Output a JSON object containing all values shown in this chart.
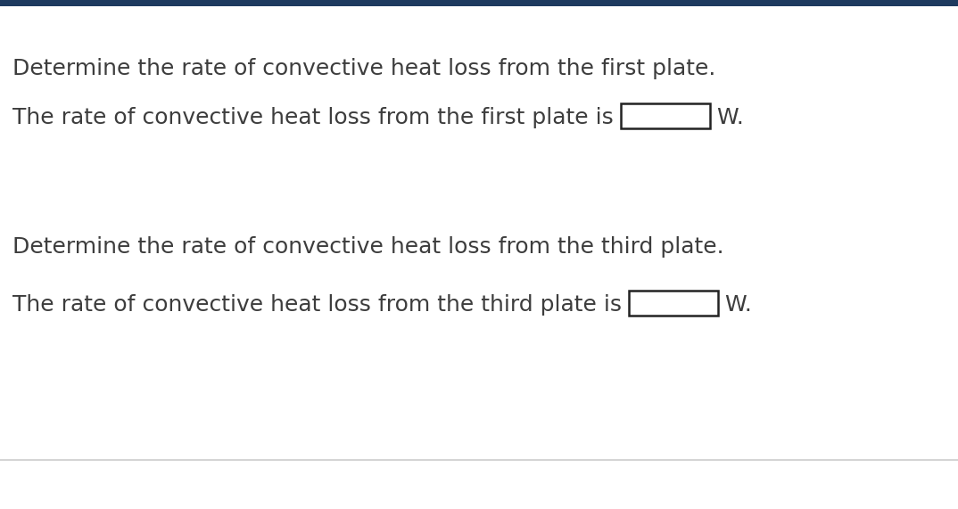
{
  "bg_color": "#ffffff",
  "top_border_color": "#1e3a5f",
  "bottom_border_color": "#cccccc",
  "text_color": "#3d3d3d",
  "line1_text": "Determine the rate of convective heat loss from the first plate.",
  "line2_prefix": "The rate of convective heat loss from the first plate is ",
  "line2_suffix": " W.",
  "line3_text": "Determine the rate of convective heat loss from the third plate.",
  "line4_prefix": "The rate of convective heat loss from the third plate is ",
  "line4_suffix": " W.",
  "font_size": 18,
  "fig_width": 10.74,
  "fig_height": 5.71,
  "dpi": 100
}
